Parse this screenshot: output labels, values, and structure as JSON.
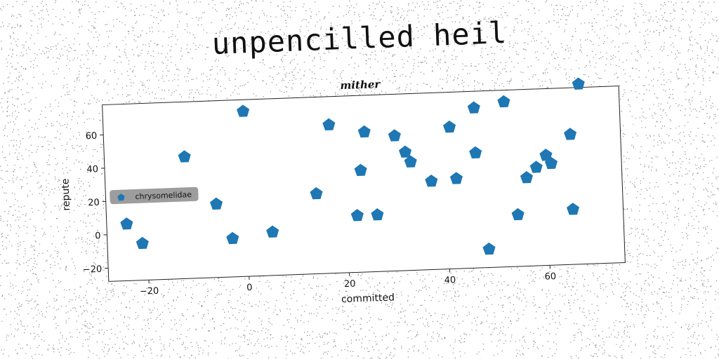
{
  "page_title": "unpencilled heil",
  "chart_data": {
    "type": "scatter",
    "title": "mither",
    "xlabel": "committed",
    "ylabel": "repute",
    "xlim": [
      -28,
      75
    ],
    "ylim": [
      -28,
      78
    ],
    "xticks": [
      -20,
      0,
      20,
      40,
      60
    ],
    "yticks": [
      -20,
      0,
      20,
      40,
      60
    ],
    "grid": false,
    "legend_placement": "center-left",
    "marker": "pentagon",
    "color": "#1f77b4",
    "series": [
      {
        "name": "chrysomelidae",
        "x": [
          -24,
          -21,
          -12,
          -6,
          -3,
          0,
          5,
          14,
          17,
          22,
          23,
          24,
          26,
          30,
          32,
          33,
          37,
          41,
          42,
          46,
          46,
          48,
          52,
          54,
          56,
          58,
          60,
          61,
          65,
          65,
          67
        ],
        "y": [
          6,
          -6,
          45,
          16,
          -5,
          71,
          -2,
          20,
          61,
          6,
          33,
          56,
          6,
          53,
          43,
          37,
          25,
          57,
          26,
          41,
          68,
          -17,
          71,
          3,
          25,
          31,
          38,
          33,
          50,
          5,
          80
        ]
      }
    ]
  }
}
